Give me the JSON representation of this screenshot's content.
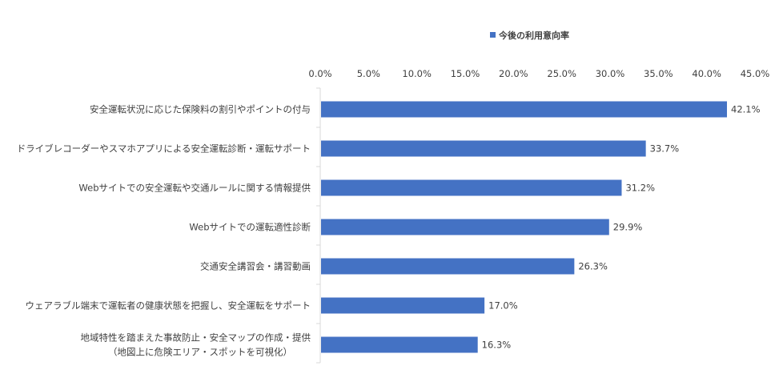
{
  "chart_data": {
    "type": "bar",
    "orientation": "horizontal",
    "categories": [
      [
        "安全運転状況に応じた保険料の割引やポイントの付与"
      ],
      [
        "ドライブレコーダーやスマホアプリによる安全運転診断・運転サポート"
      ],
      [
        "Webサイトでの安全運転や交通ルールに関する情報提供"
      ],
      [
        "Webサイトでの運転適性診断"
      ],
      [
        "交通安全講習会・講習動画"
      ],
      [
        "ウェアラブル端末で運転者の健康状態を把握し、安全運転をサポート"
      ],
      [
        "地域特性を踏まえた事故防止・安全マップの作成・提供",
        "（地図上に危険エリア・スポットを可視化）"
      ]
    ],
    "series": [
      {
        "name": "今後の利用意向率",
        "values": [
          42.1,
          33.7,
          31.2,
          29.9,
          26.3,
          17.0,
          16.3
        ],
        "data_labels": [
          "42.1%",
          "33.7%",
          "31.2%",
          "29.9%",
          "26.3%",
          "17.0%",
          "16.3%"
        ]
      }
    ],
    "xlim": [
      0,
      45
    ],
    "x_ticks": [
      "0.0%",
      "5.0%",
      "10.0%",
      "15.0%",
      "20.0%",
      "25.0%",
      "30.0%",
      "35.0%",
      "40.0%",
      "45.0%"
    ],
    "x_tick_values": [
      0,
      5,
      10,
      15,
      20,
      25,
      30,
      35,
      40,
      45
    ],
    "x_axis_position": "top",
    "legend_position": "top",
    "grid": false,
    "bar_color": "#4472C4"
  }
}
